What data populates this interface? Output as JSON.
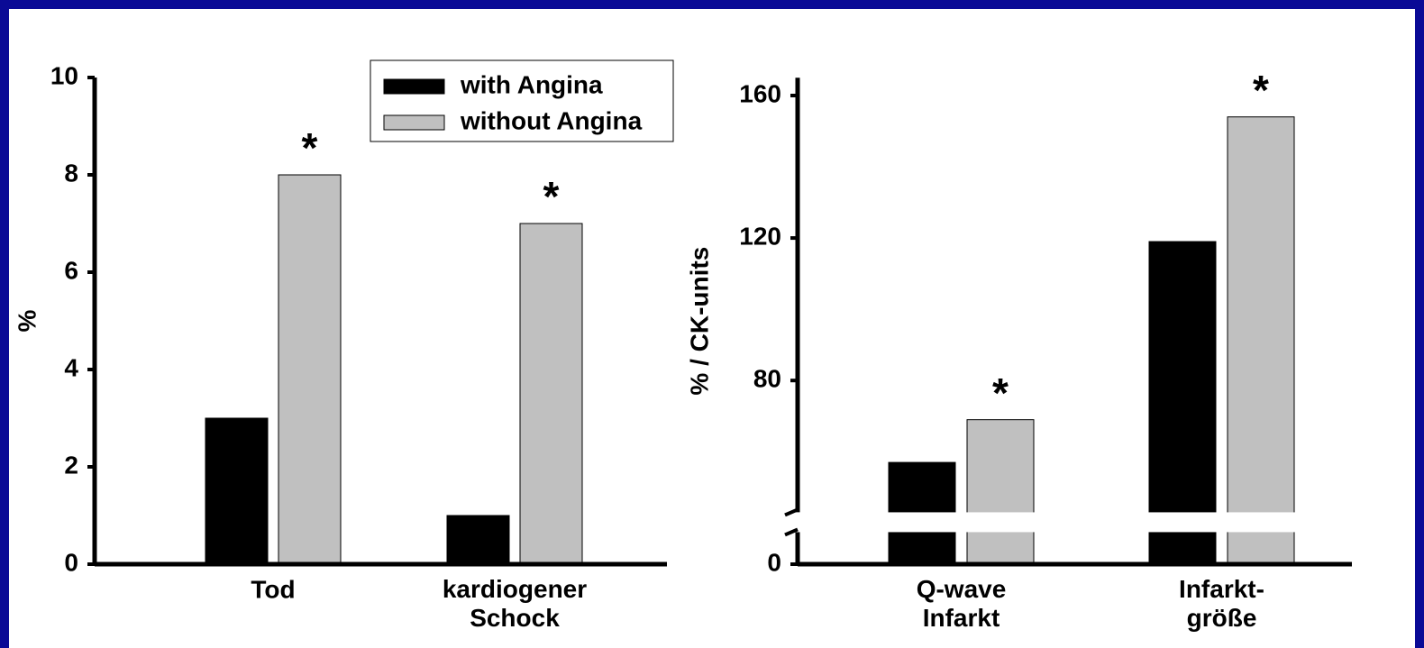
{
  "chart_data": [
    {
      "type": "bar",
      "y_label": "%",
      "categories": [
        "Tod",
        "kardiogener\nSchock"
      ],
      "series": [
        {
          "name": "with Angina",
          "color": "#000000",
          "values": [
            3,
            1
          ]
        },
        {
          "name": "without Angina",
          "color": "#c0c0c0",
          "values": [
            8,
            7
          ]
        }
      ],
      "annotations": [
        "*",
        "*"
      ],
      "ylim": [
        0,
        10
      ],
      "yticks": [
        0,
        2,
        4,
        6,
        8,
        10
      ],
      "legend": "top-right"
    },
    {
      "type": "bar",
      "y_label": "% / CK-units",
      "categories": [
        "Q-wave\nInfarkt",
        "Infarkt-\ngröße"
      ],
      "series": [
        {
          "color": "#000000",
          "values": [
            57,
            119
          ]
        },
        {
          "color": "#c0c0c0",
          "values": [
            69,
            154
          ]
        }
      ],
      "annotations": [
        "*",
        "*"
      ],
      "ylim": [
        0,
        165
      ],
      "axis_break": [
        9,
        43
      ],
      "yticks": [
        0,
        80,
        120,
        160
      ]
    }
  ]
}
